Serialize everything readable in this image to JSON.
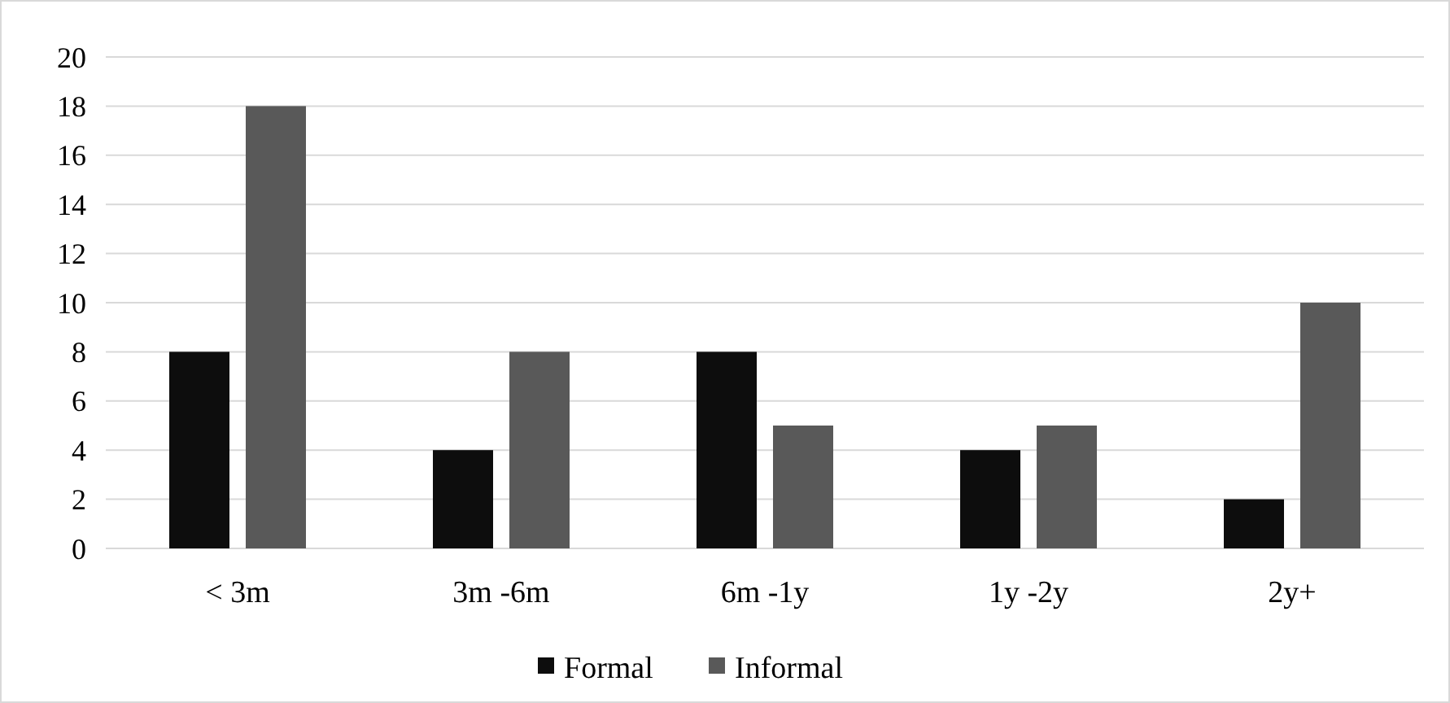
{
  "chart_data": {
    "type": "bar",
    "categories": [
      "< 3m",
      "3m -6m",
      "6m -1y",
      "1y -2y",
      "2y+"
    ],
    "series": [
      {
        "name": "Formal",
        "color": "#0d0d0d",
        "values": [
          8,
          4,
          8,
          4,
          2
        ]
      },
      {
        "name": "Informal",
        "color": "#595959",
        "values": [
          18,
          8,
          5,
          5,
          10
        ]
      }
    ],
    "ylim": [
      0,
      20
    ],
    "yticks": [
      0,
      2,
      4,
      6,
      8,
      10,
      12,
      14,
      16,
      18,
      20
    ],
    "grid": "y",
    "legend": "bottom"
  }
}
